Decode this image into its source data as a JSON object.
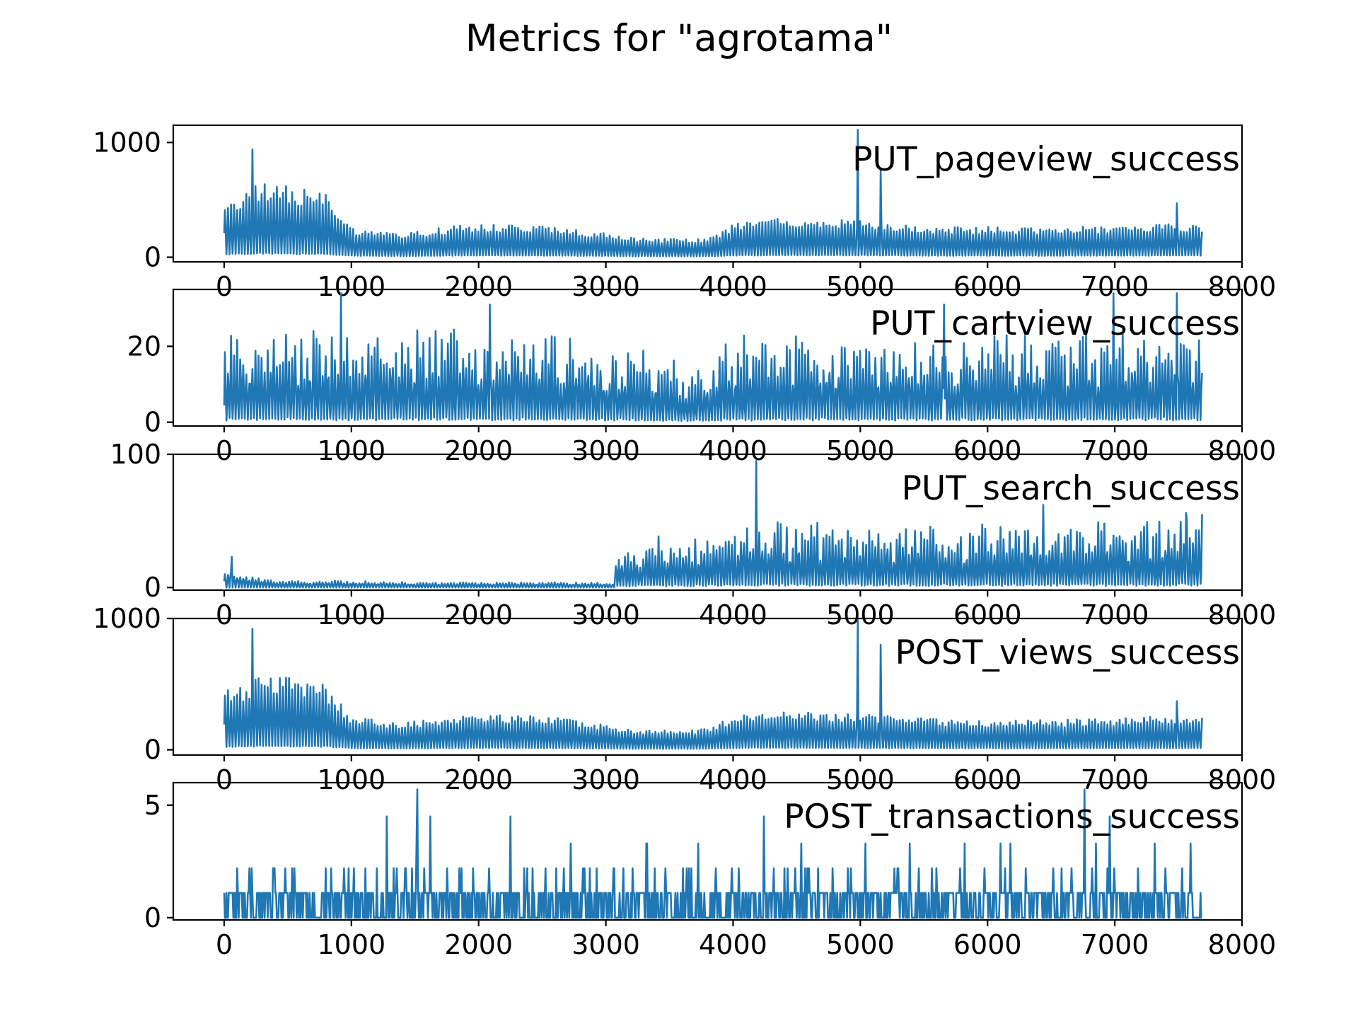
{
  "title": "Metrics for \"agrotama\"",
  "colors": {
    "series": "#1f77b4",
    "axes": "#000000",
    "background": "#ffffff"
  },
  "chart_data": [
    {
      "type": "line",
      "label": "PUT_pageview_success",
      "xlim": [
        -400,
        8000
      ],
      "ylim": [
        -40,
        1150
      ],
      "xticks": [
        0,
        1000,
        2000,
        3000,
        4000,
        5000,
        6000,
        7000,
        8000
      ],
      "yticks": [
        0,
        1000
      ],
      "grid": false,
      "series": [
        {
          "values": [
            [
              0,
              450
            ],
            [
              200,
              500
            ],
            [
              250,
              560
            ],
            [
              500,
              540
            ],
            [
              800,
              480
            ],
            [
              1000,
              220
            ],
            [
              1400,
              180
            ],
            [
              1600,
              210
            ],
            [
              2000,
              260
            ],
            [
              2300,
              240
            ],
            [
              2600,
              230
            ],
            [
              3000,
              180
            ],
            [
              3200,
              150
            ],
            [
              3500,
              140
            ],
            [
              3800,
              140
            ],
            [
              4000,
              250
            ],
            [
              4300,
              300
            ],
            [
              4600,
              290
            ],
            [
              4980,
              290
            ],
            [
              5200,
              260
            ],
            [
              5500,
              240
            ],
            [
              6000,
              230
            ],
            [
              6500,
              230
            ],
            [
              7000,
              240
            ],
            [
              7300,
              250
            ],
            [
              7690,
              260
            ]
          ]
        }
      ],
      "spikes": [
        [
          220,
          940
        ],
        [
          4980,
          1110
        ],
        [
          5160,
          760
        ],
        [
          7490,
          470
        ]
      ]
    },
    {
      "type": "line",
      "label": "PUT_cartview_success",
      "xlim": [
        -400,
        8000
      ],
      "ylim": [
        -1,
        35
      ],
      "xticks": [
        0,
        1000,
        2000,
        3000,
        4000,
        5000,
        6000,
        7000,
        8000
      ],
      "yticks": [
        0,
        20
      ],
      "grid": false,
      "series": [
        {
          "values": [
            [
              0,
              17
            ],
            [
              500,
              19
            ],
            [
              1000,
              18
            ],
            [
              1500,
              19
            ],
            [
              2000,
              19
            ],
            [
              2500,
              18
            ],
            [
              3000,
              16
            ],
            [
              3300,
              14
            ],
            [
              3600,
              11
            ],
            [
              3800,
              11
            ],
            [
              4000,
              17
            ],
            [
              4500,
              18
            ],
            [
              5000,
              18
            ],
            [
              5500,
              17
            ],
            [
              6000,
              17
            ],
            [
              6500,
              18
            ],
            [
              7000,
              18
            ],
            [
              7500,
              19
            ],
            [
              7690,
              18
            ]
          ]
        }
      ],
      "spikes": [
        [
          920,
          34
        ],
        [
          2090,
          31
        ],
        [
          5660,
          31
        ],
        [
          6990,
          34
        ],
        [
          7490,
          34
        ]
      ]
    },
    {
      "type": "line",
      "label": "PUT_search_success",
      "xlim": [
        -400,
        8000
      ],
      "ylim": [
        -2,
        100
      ],
      "xticks": [
        0,
        1000,
        2000,
        3000,
        4000,
        5000,
        6000,
        7000,
        8000
      ],
      "yticks": [
        0,
        100
      ],
      "grid": false,
      "series": [
        {
          "values": [
            [
              0,
              8
            ],
            [
              50,
              12
            ],
            [
              200,
              6
            ],
            [
              500,
              4
            ],
            [
              1000,
              4
            ],
            [
              1500,
              3
            ],
            [
              2000,
              3
            ],
            [
              2500,
              3
            ],
            [
              3000,
              3
            ],
            [
              3060,
              3
            ],
            [
              3080,
              22
            ],
            [
              3300,
              28
            ],
            [
              3600,
              28
            ],
            [
              3900,
              30
            ],
            [
              4100,
              40
            ],
            [
              4400,
              38
            ],
            [
              4700,
              38
            ],
            [
              5000,
              36
            ],
            [
              5300,
              38
            ],
            [
              5600,
              35
            ],
            [
              6000,
              36
            ],
            [
              6500,
              38
            ],
            [
              7000,
              38
            ],
            [
              7400,
              40
            ],
            [
              7690,
              45
            ]
          ]
        }
      ],
      "spikes": [
        [
          60,
          23
        ],
        [
          4180,
          95
        ],
        [
          6440,
          62
        ],
        [
          7560,
          56
        ]
      ]
    },
    {
      "type": "line",
      "label": "POST_views_success",
      "xlim": [
        -400,
        8000
      ],
      "ylim": [
        -40,
        1000
      ],
      "xticks": [
        0,
        1000,
        2000,
        3000,
        4000,
        5000,
        6000,
        7000,
        8000
      ],
      "yticks": [
        0,
        1000
      ],
      "grid": false,
      "series": [
        {
          "values": [
            [
              0,
              400
            ],
            [
              200,
              440
            ],
            [
              250,
              500
            ],
            [
              500,
              480
            ],
            [
              800,
              430
            ],
            [
              1000,
              220
            ],
            [
              1400,
              180
            ],
            [
              1600,
              200
            ],
            [
              2000,
              250
            ],
            [
              2300,
              230
            ],
            [
              2600,
              220
            ],
            [
              3000,
              170
            ],
            [
              3200,
              140
            ],
            [
              3500,
              130
            ],
            [
              3800,
              140
            ],
            [
              4000,
              220
            ],
            [
              4300,
              260
            ],
            [
              4600,
              250
            ],
            [
              4980,
              240
            ],
            [
              5200,
              230
            ],
            [
              5500,
              210
            ],
            [
              6000,
              200
            ],
            [
              6500,
              200
            ],
            [
              7000,
              210
            ],
            [
              7300,
              220
            ],
            [
              7690,
              230
            ]
          ]
        }
      ],
      "spikes": [
        [
          220,
          920
        ],
        [
          4980,
          990
        ],
        [
          5160,
          800
        ],
        [
          7490,
          370
        ]
      ]
    },
    {
      "type": "line",
      "label": "POST_transactions_success",
      "xlim": [
        -400,
        8000
      ],
      "ylim": [
        -0.1,
        6.0
      ],
      "xticks": [
        0,
        1000,
        2000,
        3000,
        4000,
        5000,
        6000,
        7000,
        8000
      ],
      "yticks": [
        0,
        5
      ],
      "grid": false,
      "series": [
        {
          "values": [
            [
              0,
              1
            ],
            [
              1000,
              1
            ],
            [
              2000,
              1
            ],
            [
              3000,
              1
            ],
            [
              4000,
              1
            ],
            [
              5000,
              1
            ],
            [
              6000,
              1
            ],
            [
              7000,
              1
            ],
            [
              7690,
              1
            ]
          ]
        }
      ],
      "spikes": [
        [
          1520,
          5.7
        ],
        [
          6760,
          5.7
        ],
        [
          1280,
          4.5
        ],
        [
          1620,
          4.5
        ],
        [
          2250,
          4.5
        ],
        [
          4240,
          4.5
        ],
        [
          6960,
          4.5
        ]
      ]
    }
  ]
}
